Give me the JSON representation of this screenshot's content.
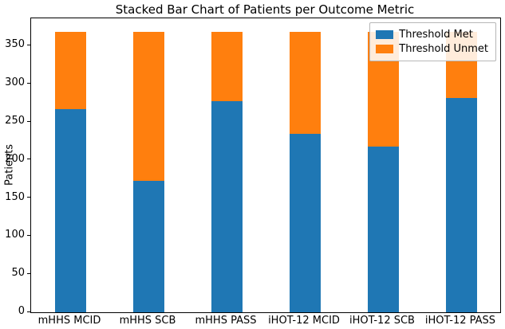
{
  "chart_data": {
    "type": "bar",
    "stacked": true,
    "title": "Stacked Bar Chart of Patients per Outcome Metric",
    "xlabel": "",
    "ylabel": "Patients",
    "categories": [
      "mHHS MCID",
      "mHHS SCB",
      "mHHS PASS",
      "iHOT-12 MCID",
      "iHOT-12 SCB",
      "iHOT-12 PASS"
    ],
    "series": [
      {
        "name": "Threshold Met",
        "color": "#1f77b4",
        "values": [
          267,
          173,
          277,
          234,
          218,
          281
        ]
      },
      {
        "name": "Threshold Unmet",
        "color": "#ff7f0e",
        "values": [
          101,
          195,
          91,
          134,
          150,
          87
        ]
      }
    ],
    "totals": [
      368,
      368,
      368,
      368,
      368,
      368
    ],
    "ylim": [
      0,
      386
    ],
    "yticks": [
      0,
      50,
      100,
      150,
      200,
      250,
      300,
      350
    ],
    "legend_position": "upper right",
    "grid": false
  }
}
